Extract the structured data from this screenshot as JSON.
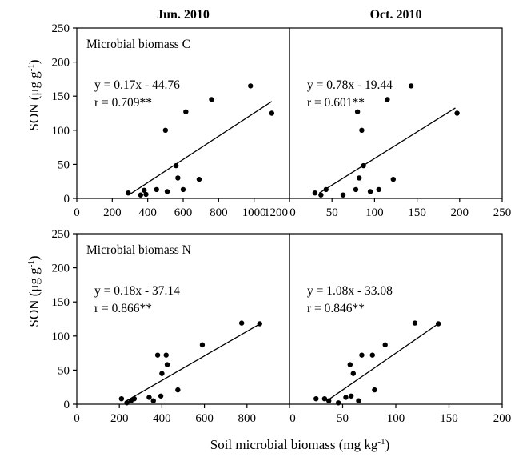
{
  "figure": {
    "ylabel_main": "SON (μg g",
    "ylabel_sup": "-1",
    "ylabel_close": ")",
    "xlabel_main": "Soil microbial biomass (mg kg",
    "xlabel_sup": "-1",
    "xlabel_close": ")"
  },
  "chart_data": [
    {
      "type": "scatter",
      "title": "Jun. 2010",
      "annotation_label": "Microbial biomass C",
      "equation": "y = 0.17x - 44.76",
      "r": "r = 0.709**",
      "xlim": [
        0,
        1200
      ],
      "ylim": [
        0,
        250
      ],
      "xticks": [
        "0",
        "200",
        "400",
        "600",
        "800",
        "1000",
        "1200"
      ],
      "yticks": [
        "0",
        "50",
        "100",
        "150",
        "200",
        "250"
      ],
      "fit": {
        "slope": 0.17,
        "intercept": -44.76,
        "x_range": [
          300,
          1100
        ]
      },
      "points": [
        {
          "x": 290,
          "y": 8
        },
        {
          "x": 360,
          "y": 5
        },
        {
          "x": 380,
          "y": 12
        },
        {
          "x": 390,
          "y": 6
        },
        {
          "x": 450,
          "y": 13
        },
        {
          "x": 500,
          "y": 100
        },
        {
          "x": 510,
          "y": 10
        },
        {
          "x": 560,
          "y": 48
        },
        {
          "x": 570,
          "y": 30
        },
        {
          "x": 600,
          "y": 13
        },
        {
          "x": 615,
          "y": 127
        },
        {
          "x": 690,
          "y": 28
        },
        {
          "x": 760,
          "y": 145
        },
        {
          "x": 980,
          "y": 165
        },
        {
          "x": 1100,
          "y": 125
        }
      ]
    },
    {
      "type": "scatter",
      "title": "Oct. 2010",
      "annotation_label": "",
      "equation": "y = 0.78x - 19.44",
      "r": "r = 0.601**",
      "xlim": [
        0,
        250
      ],
      "ylim": [
        0,
        250
      ],
      "xticks": [
        "0",
        "50",
        "100",
        "150",
        "200",
        "250"
      ],
      "yticks": [],
      "fit": {
        "slope": 0.78,
        "intercept": -19.44,
        "x_range": [
          35,
          195
        ]
      },
      "points": [
        {
          "x": 30,
          "y": 8
        },
        {
          "x": 37,
          "y": 5
        },
        {
          "x": 43,
          "y": 13
        },
        {
          "x": 63,
          "y": 5
        },
        {
          "x": 78,
          "y": 13
        },
        {
          "x": 80,
          "y": 127
        },
        {
          "x": 82,
          "y": 30
        },
        {
          "x": 85,
          "y": 100
        },
        {
          "x": 87,
          "y": 48
        },
        {
          "x": 95,
          "y": 10
        },
        {
          "x": 105,
          "y": 13
        },
        {
          "x": 115,
          "y": 145
        },
        {
          "x": 122,
          "y": 28
        },
        {
          "x": 143,
          "y": 165
        },
        {
          "x": 197,
          "y": 125
        }
      ]
    },
    {
      "type": "scatter",
      "title": "",
      "annotation_label": "Microbial biomass N",
      "equation": "y = 0.18x - 37.14",
      "r": "r = 0.866**",
      "xlim": [
        0,
        1000
      ],
      "ylim": [
        0,
        250
      ],
      "xticks": [
        "0",
        "200",
        "400",
        "600",
        "800"
      ],
      "yticks": [
        "0",
        "50",
        "100",
        "150",
        "200",
        "250"
      ],
      "fit": {
        "slope": 0.18,
        "intercept": -37.14,
        "x_range": [
          230,
          860
        ]
      },
      "points": [
        {
          "x": 210,
          "y": 8
        },
        {
          "x": 235,
          "y": 2
        },
        {
          "x": 255,
          "y": 5
        },
        {
          "x": 270,
          "y": 8
        },
        {
          "x": 340,
          "y": 10
        },
        {
          "x": 360,
          "y": 5
        },
        {
          "x": 380,
          "y": 72
        },
        {
          "x": 395,
          "y": 12
        },
        {
          "x": 400,
          "y": 45
        },
        {
          "x": 420,
          "y": 72
        },
        {
          "x": 425,
          "y": 58
        },
        {
          "x": 475,
          "y": 21
        },
        {
          "x": 590,
          "y": 87
        },
        {
          "x": 775,
          "y": 119
        },
        {
          "x": 860,
          "y": 118
        }
      ]
    },
    {
      "type": "scatter",
      "title": "",
      "annotation_label": "",
      "equation": "y = 1.08x - 33.08",
      "r": "r = 0.846**",
      "xlim": [
        0,
        200
      ],
      "ylim": [
        0,
        250
      ],
      "xticks": [
        "0",
        "50",
        "100",
        "150",
        "200"
      ],
      "yticks": [],
      "fit": {
        "slope": 1.08,
        "intercept": -33.08,
        "x_range": [
          38,
          140
        ]
      },
      "points": [
        {
          "x": 25,
          "y": 8
        },
        {
          "x": 33,
          "y": 8
        },
        {
          "x": 37,
          "y": 5
        },
        {
          "x": 46,
          "y": 2
        },
        {
          "x": 53,
          "y": 10
        },
        {
          "x": 57,
          "y": 58
        },
        {
          "x": 58,
          "y": 12
        },
        {
          "x": 60,
          "y": 45
        },
        {
          "x": 65,
          "y": 5
        },
        {
          "x": 68,
          "y": 72
        },
        {
          "x": 78,
          "y": 72
        },
        {
          "x": 80,
          "y": 21
        },
        {
          "x": 90,
          "y": 87
        },
        {
          "x": 118,
          "y": 119
        },
        {
          "x": 140,
          "y": 118
        }
      ]
    }
  ]
}
